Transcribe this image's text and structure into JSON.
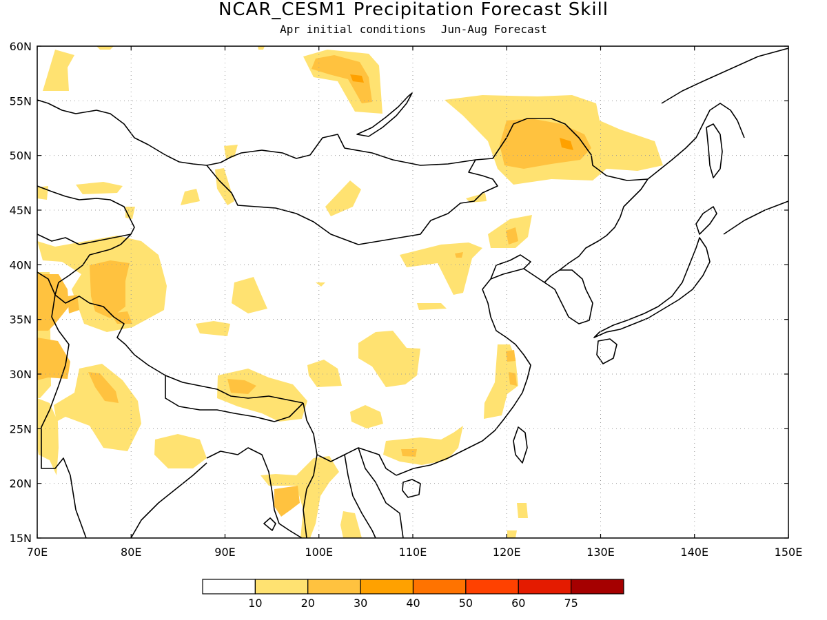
{
  "title": "NCAR_CESM1 Precipitation Forecast Skill",
  "subtitle_left": "Apr initial conditions",
  "subtitle_right": "Jun-Aug Forecast",
  "lon_labels": [
    "70E",
    "80E",
    "90E",
    "100E",
    "110E",
    "120E",
    "130E",
    "140E",
    "150E"
  ],
  "lat_labels": [
    "15N",
    "20N",
    "25N",
    "30N",
    "35N",
    "40N",
    "45N",
    "50N",
    "55N",
    "60N"
  ],
  "colorbar": {
    "colors": [
      "#ffffff",
      "#ffe271",
      "#ffc23f",
      "#ffa100",
      "#ff7300",
      "#ff4100",
      "#e41b00",
      "#a50000"
    ],
    "labels": [
      "10",
      "20",
      "30",
      "40",
      "50",
      "60",
      "75"
    ]
  },
  "colors": {
    "c10": "#ffe271",
    "c20": "#ffc23f",
    "c30": "#ffa100",
    "coast": "#000000",
    "grid": "#999999"
  }
}
